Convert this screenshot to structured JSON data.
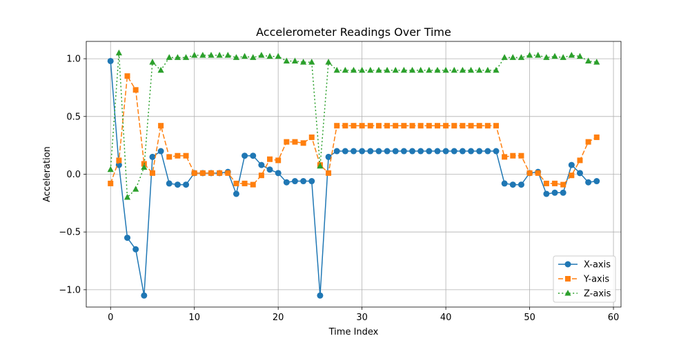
{
  "chart_data": {
    "type": "line",
    "title": "Accelerometer Readings Over Time",
    "xlabel": "Time Index",
    "ylabel": "Acceleration",
    "xlim": [
      -2.9,
      60.9
    ],
    "ylim": [
      -1.15,
      1.15
    ],
    "xticks": [
      0,
      10,
      20,
      30,
      40,
      50,
      60
    ],
    "xtick_labels": [
      "0",
      "10",
      "20",
      "30",
      "40",
      "50",
      "60"
    ],
    "yticks": [
      -1.0,
      -0.5,
      0.0,
      0.5,
      1.0
    ],
    "ytick_labels": [
      "−1.0",
      "−0.5",
      "0.0",
      "0.5",
      "1.0"
    ],
    "grid": true,
    "legend_position": "lower-right",
    "x": [
      0,
      1,
      2,
      3,
      4,
      5,
      6,
      7,
      8,
      9,
      10,
      11,
      12,
      13,
      14,
      15,
      16,
      17,
      18,
      19,
      20,
      21,
      22,
      23,
      24,
      25,
      26,
      27,
      28,
      29,
      30,
      31,
      32,
      33,
      34,
      35,
      36,
      37,
      38,
      39,
      40,
      41,
      42,
      43,
      44,
      45,
      46,
      47,
      48,
      49,
      50,
      51,
      52,
      53,
      54,
      55,
      56,
      57,
      58
    ],
    "series": [
      {
        "name": "X-axis",
        "color": "#1f77b4",
        "marker": "circle",
        "linestyle": "solid",
        "values": [
          0.98,
          0.08,
          -0.55,
          -0.65,
          -1.05,
          0.15,
          0.2,
          -0.08,
          -0.09,
          -0.09,
          0.01,
          0.01,
          0.01,
          0.01,
          0.02,
          -0.17,
          0.16,
          0.16,
          0.08,
          0.04,
          0.01,
          -0.07,
          -0.06,
          -0.06,
          -0.06,
          -1.05,
          0.15,
          0.2,
          0.2,
          0.2,
          0.2,
          0.2,
          0.2,
          0.2,
          0.2,
          0.2,
          0.2,
          0.2,
          0.2,
          0.2,
          0.2,
          0.2,
          0.2,
          0.2,
          0.2,
          0.2,
          0.2,
          -0.08,
          -0.09,
          -0.09,
          0.01,
          0.02,
          -0.17,
          -0.16,
          -0.16,
          0.08,
          0.01,
          -0.07,
          -0.06
        ]
      },
      {
        "name": "Y-axis",
        "color": "#ff7f0e",
        "marker": "square",
        "linestyle": "dashed",
        "values": [
          -0.08,
          0.12,
          0.85,
          0.73,
          0.09,
          0.01,
          0.42,
          0.15,
          0.16,
          0.16,
          0.01,
          0.01,
          0.01,
          0.01,
          0.01,
          -0.08,
          -0.08,
          -0.09,
          -0.01,
          0.13,
          0.12,
          0.28,
          0.28,
          0.27,
          0.32,
          0.08,
          0.01,
          0.42,
          0.42,
          0.42,
          0.42,
          0.42,
          0.42,
          0.42,
          0.42,
          0.42,
          0.42,
          0.42,
          0.42,
          0.42,
          0.42,
          0.42,
          0.42,
          0.42,
          0.42,
          0.42,
          0.42,
          0.15,
          0.16,
          0.16,
          0.01,
          0.01,
          -0.08,
          -0.08,
          -0.09,
          -0.01,
          0.12,
          0.28,
          0.32
        ]
      },
      {
        "name": "Z-axis",
        "color": "#2ca02c",
        "marker": "triangle",
        "linestyle": "dotted",
        "values": [
          0.04,
          1.05,
          -0.2,
          -0.13,
          0.06,
          0.97,
          0.9,
          1.01,
          1.01,
          1.01,
          1.03,
          1.03,
          1.03,
          1.03,
          1.03,
          1.01,
          1.02,
          1.01,
          1.03,
          1.02,
          1.02,
          0.98,
          0.98,
          0.97,
          0.97,
          0.07,
          0.97,
          0.9,
          0.9,
          0.9,
          0.9,
          0.9,
          0.9,
          0.9,
          0.9,
          0.9,
          0.9,
          0.9,
          0.9,
          0.9,
          0.9,
          0.9,
          0.9,
          0.9,
          0.9,
          0.9,
          0.9,
          1.01,
          1.01,
          1.01,
          1.03,
          1.03,
          1.01,
          1.02,
          1.01,
          1.03,
          1.02,
          0.98,
          0.97
        ]
      }
    ]
  }
}
